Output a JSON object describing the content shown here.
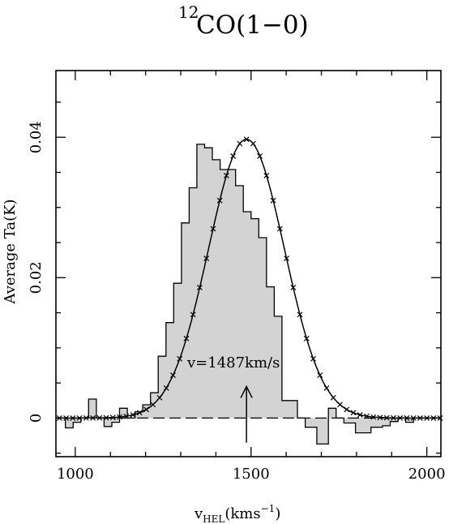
{
  "chart_data": {
    "type": "histogram-line",
    "title": {
      "prefix_superscript": "12",
      "main": "CO(1−0)"
    },
    "xlabel": {
      "v": "v",
      "sub": "HEL",
      "units_open": "(kms",
      "units_sup": "−1",
      "units_close": ")"
    },
    "ylabel": "Average Ta(K)",
    "xlim": [
      945,
      2040
    ],
    "ylim": [
      -0.0055,
      0.0495
    ],
    "x_ticks": [
      1000,
      1500,
      2000
    ],
    "x_tick_labels": [
      "1000",
      "1500",
      "2000"
    ],
    "y_ticks": [
      0,
      0.02,
      0.04
    ],
    "y_tick_labels": [
      "0",
      "0.02",
      "0.04"
    ],
    "x_minor_step": 100,
    "y_minor_step": 0.005,
    "baseline": 0,
    "fill_color": "#d3d3d3",
    "line_color": "#000000",
    "annotation": {
      "text": "v=1487km/s",
      "x": 1487,
      "arrow_from": -0.0035,
      "arrow_to": 0.0045
    },
    "spectrum": {
      "bin_edges": [
        945,
        961,
        972,
        983,
        994,
        1005,
        1016,
        1027,
        1038,
        1049,
        1060,
        1071,
        1082,
        1093,
        1104,
        1115,
        1126,
        1137,
        1148,
        1159,
        1170,
        1181,
        1192,
        1203,
        1214,
        1225,
        1236,
        1247,
        1258,
        1269,
        1280,
        1291,
        1302,
        1313,
        1324,
        1335,
        1346,
        1357,
        1368,
        1379,
        1390,
        1401,
        1412,
        1423,
        1434,
        1445,
        1456,
        1467,
        1478,
        1489,
        1500,
        1511,
        1522,
        1533,
        1544,
        1555,
        1566,
        1577,
        1588,
        1599,
        1610,
        1621,
        1632,
        1643,
        1654,
        1665,
        1676,
        1687,
        1698,
        1709,
        1720,
        1731,
        1742,
        1753,
        1764,
        1775,
        1786,
        1797,
        1808,
        1819,
        1830,
        1841,
        1852,
        1863,
        1874,
        1885,
        1896,
        1907,
        1918,
        1929,
        1940,
        1951,
        1962,
        1973,
        1984,
        1995,
        2006,
        2017,
        2028,
        2040
      ],
      "values": [
        0.0,
        0.0,
        -0.0014,
        -0.0014,
        -0.0006,
        -0.0006,
        0.0,
        0.0,
        0.0027,
        0.0027,
        0.0,
        0.0,
        -0.0012,
        -0.0012,
        -0.0006,
        -0.0006,
        0.0014,
        0.0014,
        0.0,
        0.0,
        0.0009,
        0.0009,
        0.0019,
        0.0019,
        0.0036,
        0.0036,
        0.0088,
        0.0088,
        0.0136,
        0.0136,
        0.0192,
        0.0192,
        0.0278,
        0.0278,
        0.0328,
        0.0328,
        0.039,
        0.039,
        0.0385,
        0.0385,
        0.0368,
        0.0368,
        0.0354,
        0.0354,
        0.0354,
        0.0354,
        0.0331,
        0.0331,
        0.0294,
        0.0294,
        0.0284,
        0.0284,
        0.0257,
        0.0257,
        0.0187,
        0.0187,
        0.0145,
        0.0145,
        0.0025,
        0.0025,
        0.0025,
        0.0025,
        0.0,
        0.0,
        -0.0013,
        -0.0013,
        -0.0013,
        -0.0037,
        -0.0037,
        -0.0037,
        0.0014,
        0.0014,
        0.0,
        0.0,
        -0.0007,
        -0.0007,
        -0.0007,
        -0.0021,
        -0.0021,
        -0.0021,
        -0.0021,
        -0.0013,
        -0.0013,
        -0.0013,
        -0.0011,
        -0.0011,
        -0.0005,
        -0.0005,
        0.0,
        0.0,
        -0.0006,
        -0.0006,
        0.0,
        0.0,
        0.0,
        0.0,
        0.0,
        0.0,
        0.0
      ]
    },
    "gaussian_fit": {
      "center": 1487,
      "amplitude": 0.0397,
      "sigma": 108,
      "x_start": 945,
      "x_end": 2040,
      "marker": "x",
      "marker_step": 19
    }
  }
}
